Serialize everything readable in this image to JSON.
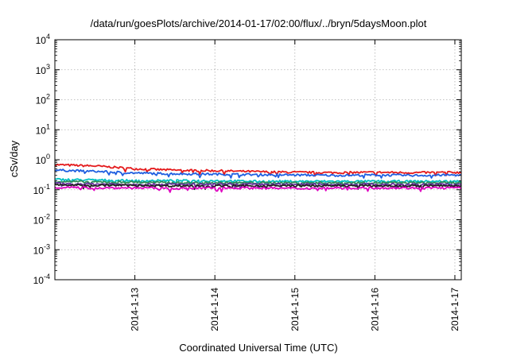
{
  "chart_data": {
    "type": "line",
    "title": "/data/run/goesPlots/archive/2014-01-17/02:00/flux/../bryn/5daysMoon.plot",
    "xlabel": "Coordinated Universal Time (UTC)",
    "ylabel": "cSv/day",
    "yscale": "log",
    "ylim_exponents": [
      -4,
      4
    ],
    "xlim_days": [
      12.0,
      17.08
    ],
    "grid": true,
    "x_ticks": [
      {
        "day": 13,
        "label": "2014-1-13"
      },
      {
        "day": 14,
        "label": "2014-1-14"
      },
      {
        "day": 15,
        "label": "2014-1-15"
      },
      {
        "day": 16,
        "label": "2014-1-16"
      },
      {
        "day": 17,
        "label": "2014-1-17"
      }
    ],
    "y_ticks": [
      {
        "exp": 4,
        "label_base": "10",
        "label_exp": "4"
      },
      {
        "exp": 3,
        "label_base": "10",
        "label_exp": "3"
      },
      {
        "exp": 2,
        "label_base": "10",
        "label_exp": "2"
      },
      {
        "exp": 1,
        "label_base": "10",
        "label_exp": "1"
      },
      {
        "exp": 0,
        "label_base": "10",
        "label_exp": "0"
      },
      {
        "exp": -1,
        "label_base": "10",
        "label_exp": "-1"
      },
      {
        "exp": -2,
        "label_base": "10",
        "label_exp": "-2"
      },
      {
        "exp": -3,
        "label_base": "10",
        "label_exp": "-3"
      },
      {
        "exp": -4,
        "label_base": "10",
        "label_exp": "-4"
      }
    ],
    "x_days": [
      12.0,
      12.5,
      13.0,
      13.5,
      14.0,
      14.5,
      15.0,
      15.5,
      16.0,
      16.5,
      17.0,
      17.08
    ],
    "series": [
      {
        "color": "#e41a1c",
        "values": [
          0.68,
          0.62,
          0.5,
          0.45,
          0.43,
          0.4,
          0.38,
          0.37,
          0.38,
          0.37,
          0.38,
          0.37
        ]
      },
      {
        "color": "#1f5fe0",
        "values": [
          0.45,
          0.41,
          0.36,
          0.34,
          0.33,
          0.32,
          0.31,
          0.3,
          0.31,
          0.3,
          0.31,
          0.3
        ]
      },
      {
        "color": "#00c0c0",
        "values": [
          0.22,
          0.21,
          0.2,
          0.2,
          0.2,
          0.19,
          0.19,
          0.19,
          0.19,
          0.19,
          0.19,
          0.19
        ]
      },
      {
        "color": "#2e8b57",
        "values": [
          0.19,
          0.18,
          0.18,
          0.17,
          0.17,
          0.17,
          0.17,
          0.17,
          0.17,
          0.17,
          0.17,
          0.17
        ]
      },
      {
        "color": "#6a2fa0",
        "values": [
          0.16,
          0.155,
          0.15,
          0.15,
          0.15,
          0.15,
          0.15,
          0.15,
          0.15,
          0.15,
          0.15,
          0.15
        ]
      },
      {
        "color": "#222222",
        "values": [
          0.145,
          0.14,
          0.14,
          0.135,
          0.135,
          0.135,
          0.135,
          0.135,
          0.135,
          0.135,
          0.135,
          0.135
        ]
      },
      {
        "color": "#e000c0",
        "values": [
          0.12,
          0.115,
          0.115,
          0.11,
          0.115,
          0.115,
          0.11,
          0.115,
          0.115,
          0.115,
          0.115,
          0.115
        ]
      }
    ]
  }
}
